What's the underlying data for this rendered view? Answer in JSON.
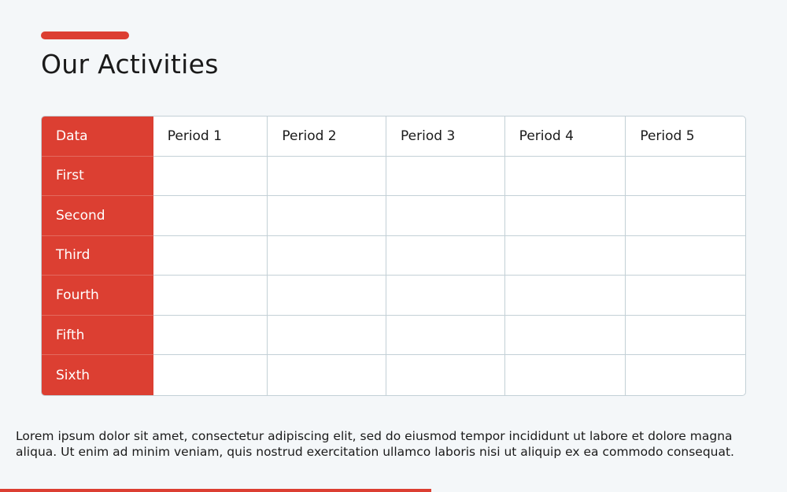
{
  "title": "Our Activities",
  "colors": {
    "accent": "#dc3f32",
    "background": "#f4f7f9",
    "grid": "#c3d0d6"
  },
  "table": {
    "headers": [
      "Data",
      "Period 1",
      "Period 2",
      "Period 3",
      "Period 4",
      "Period 5"
    ],
    "rows": [
      {
        "label": "First",
        "cells": [
          "",
          "",
          "",
          "",
          ""
        ]
      },
      {
        "label": "Second",
        "cells": [
          "",
          "",
          "",
          "",
          ""
        ]
      },
      {
        "label": "Third",
        "cells": [
          "",
          "",
          "",
          "",
          ""
        ]
      },
      {
        "label": "Fourth",
        "cells": [
          "",
          "",
          "",
          "",
          ""
        ]
      },
      {
        "label": "Fifth",
        "cells": [
          "",
          "",
          "",
          "",
          ""
        ]
      },
      {
        "label": "Sixth",
        "cells": [
          "",
          "",
          "",
          "",
          ""
        ]
      }
    ]
  },
  "body_text": "Lorem ipsum dolor sit amet, consectetur adipiscing elit, sed do eiusmod tempor incididunt ut labore et dolore magna aliqua. Ut enim ad minim veniam, quis nostrud exercitation ullamco laboris nisi ut aliquip ex ea commodo consequat."
}
